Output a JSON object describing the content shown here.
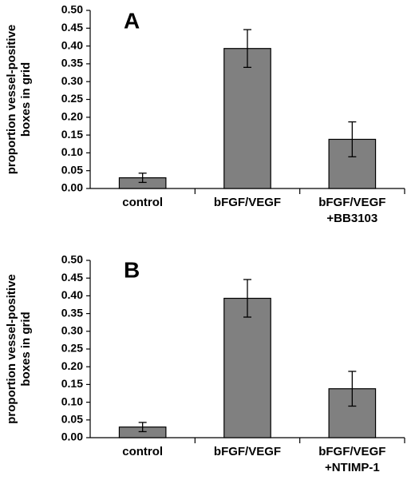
{
  "chart_data": [
    {
      "type": "bar",
      "panel_label": "A",
      "ylabel": "proportion vessel-positive boxes in grid",
      "ylabel_lines": [
        "proportion vessel-positive",
        "boxes in grid"
      ],
      "ylim": [
        0,
        0.5
      ],
      "yticks": [
        "0.00",
        "0.05",
        "0.10",
        "0.15",
        "0.20",
        "0.25",
        "0.30",
        "0.35",
        "0.40",
        "0.45",
        "0.50"
      ],
      "categories": [
        [
          "control"
        ],
        [
          "bFGF/VEGF"
        ],
        [
          "bFGF/VEGF",
          "+BB3103"
        ]
      ],
      "values": [
        0.03,
        0.393,
        0.138
      ],
      "errors": [
        0.013,
        0.053,
        0.049
      ],
      "grid": false,
      "legend": "none",
      "bar_color": "#808080"
    },
    {
      "type": "bar",
      "panel_label": "B",
      "ylabel": "proportion vessel-positive boxes in grid",
      "ylabel_lines": [
        "proportion vessel-positive",
        "boxes in grid"
      ],
      "ylim": [
        0,
        0.5
      ],
      "yticks": [
        "0.00",
        "0.05",
        "0.10",
        "0.15",
        "0.20",
        "0.25",
        "0.30",
        "0.35",
        "0.40",
        "0.45",
        "0.50"
      ],
      "categories": [
        [
          "control"
        ],
        [
          "bFGF/VEGF"
        ],
        [
          "bFGF/VEGF",
          "+NTIMP-1"
        ]
      ],
      "values": [
        0.03,
        0.393,
        0.138
      ],
      "errors": [
        0.013,
        0.053,
        0.049
      ],
      "grid": false,
      "legend": "none",
      "bar_color": "#808080"
    }
  ]
}
